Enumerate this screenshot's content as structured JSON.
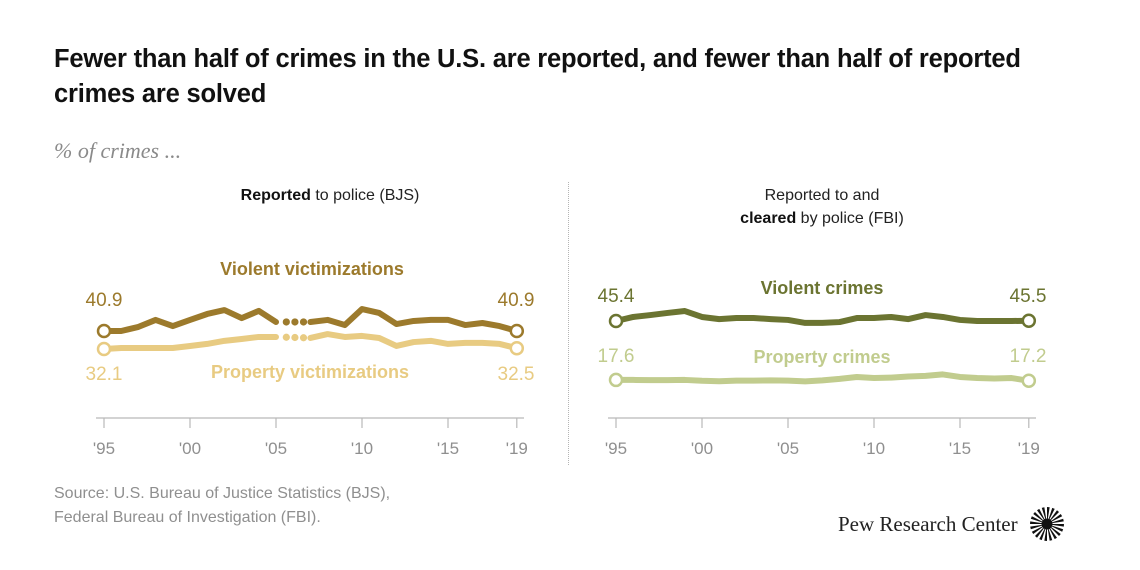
{
  "title": "Fewer than half of crimes in the U.S. are reported, and fewer than half of reported crimes are solved",
  "subtitle": "% of crimes ...",
  "source_line1": "Source: U.S. Bureau of Justice Statistics (BJS),",
  "source_line2": "Federal Bureau of Investigation (FBI).",
  "logo_text": "Pew Research Center",
  "colors": {
    "violent_victimizations": "#9c7a2c",
    "property_victimizations": "#e8cb82",
    "violent_crimes": "#6b7431",
    "property_crimes": "#c1cc8e",
    "axis": "#b9b9b9",
    "tick_label": "#8f8f8f"
  },
  "chart_data": [
    {
      "type": "line",
      "panel_title_bold": "Reported",
      "panel_title_rest": " to police (BJS)",
      "xlabel": "",
      "ylabel": "",
      "x": [
        1995,
        1996,
        1997,
        1998,
        1999,
        2000,
        2001,
        2002,
        2003,
        2004,
        2005,
        2006,
        2007,
        2008,
        2009,
        2010,
        2011,
        2012,
        2013,
        2014,
        2015,
        2016,
        2017,
        2018,
        2019
      ],
      "x_ticks": [
        1995,
        2000,
        2005,
        2010,
        2015,
        2019
      ],
      "x_tick_labels": [
        "'95",
        "'00",
        "'05",
        "'10",
        "'15",
        "'19"
      ],
      "ylim": [
        0,
        100
      ],
      "grid": false,
      "note": "2006 break shown as dotted segment",
      "series": [
        {
          "name": "Violent victimizations",
          "color_key": "violent_victimizations",
          "values": [
            40.9,
            40.9,
            42.9,
            46.3,
            43.3,
            46.3,
            49.2,
            51.1,
            47.2,
            50.7,
            45.3,
            null,
            45.3,
            46.3,
            43.8,
            51.6,
            49.7,
            44.3,
            45.8,
            46.3,
            46.3,
            43.8,
            44.8,
            43.3,
            40.9
          ],
          "start_label": "40.9",
          "end_label": "40.9"
        },
        {
          "name": "Property victimizations",
          "color_key": "property_victimizations",
          "values": [
            32.1,
            32.6,
            32.6,
            32.6,
            32.6,
            33.6,
            34.6,
            36.1,
            37.0,
            38.0,
            38.0,
            null,
            37.5,
            39.4,
            38.0,
            38.5,
            37.5,
            33.6,
            35.5,
            36.1,
            34.6,
            35.1,
            35.1,
            34.6,
            32.5
          ],
          "start_label": "32.1",
          "end_label": "32.5"
        }
      ]
    },
    {
      "type": "line",
      "panel_title_line1": "Reported to and",
      "panel_title_bold": "cleared",
      "panel_title_rest": " by police (FBI)",
      "xlabel": "",
      "ylabel": "",
      "x": [
        1995,
        1996,
        1997,
        1998,
        1999,
        2000,
        2001,
        2002,
        2003,
        2004,
        2005,
        2006,
        2007,
        2008,
        2009,
        2010,
        2011,
        2012,
        2013,
        2014,
        2015,
        2016,
        2017,
        2018,
        2019
      ],
      "x_ticks": [
        1995,
        2000,
        2005,
        2010,
        2015,
        2019
      ],
      "x_tick_labels": [
        "'95",
        "'00",
        "'05",
        "'10",
        "'15",
        "'19"
      ],
      "ylim": [
        0,
        100
      ],
      "grid": false,
      "series": [
        {
          "name": "Violent crimes",
          "color_key": "violent_crimes",
          "values": [
            45.4,
            47.3,
            48.2,
            49.2,
            50.1,
            47.3,
            46.3,
            46.8,
            46.8,
            46.3,
            45.9,
            44.5,
            44.5,
            44.9,
            46.8,
            46.8,
            47.3,
            46.3,
            48.2,
            47.3,
            45.9,
            45.4,
            45.4,
            45.4,
            45.5
          ],
          "start_label": "45.4",
          "end_label": "45.5"
        },
        {
          "name": "Property crimes",
          "color_key": "property_crimes",
          "values": [
            17.6,
            17.6,
            17.5,
            17.5,
            17.6,
            17.2,
            17.0,
            17.3,
            17.3,
            17.4,
            17.3,
            16.9,
            17.4,
            18.1,
            19.0,
            18.5,
            18.7,
            19.2,
            19.5,
            20.2,
            19.0,
            18.5,
            18.3,
            18.5,
            17.2
          ],
          "start_label": "17.6",
          "end_label": "17.2"
        }
      ]
    }
  ]
}
